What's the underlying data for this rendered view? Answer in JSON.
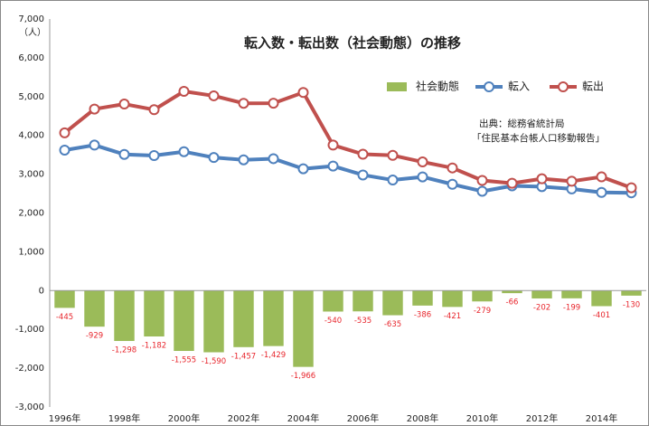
{
  "chart_data": {
    "type": "bar",
    "title": "転入数・転出数（社会動態）の推移",
    "y_unit": "（人）",
    "source": [
      "出典：総務省統計局",
      "「住民基本台帳人口移動報告」"
    ],
    "categories": [
      "1996年",
      null,
      "1998年",
      null,
      "2000年",
      null,
      "2002年",
      null,
      "2004年",
      null,
      "2006年",
      null,
      "2008年",
      null,
      "2010年",
      null,
      "2012年",
      null,
      "2014年",
      null
    ],
    "series": [
      {
        "name": "社会動態",
        "type": "bar",
        "color": "#9bbb59",
        "values": [
          -445,
          -929,
          -1298,
          -1182,
          -1555,
          -1590,
          -1457,
          -1429,
          -1966,
          -540,
          -535,
          -635,
          -386,
          -421,
          -279,
          -66,
          -202,
          -199,
          -401,
          -130
        ],
        "value_labels": [
          "-445",
          "-929",
          "-1,298",
          "-1,182",
          "-1,555",
          "-1,590",
          "-1,457",
          "-1,429",
          "-1,966",
          "-540",
          "-535",
          "-635",
          "-386",
          "-421",
          "-279",
          "-66",
          "-202",
          "-199",
          "-401",
          "-130"
        ]
      },
      {
        "name": "転入",
        "type": "line",
        "color": "#4f81bd",
        "values": [
          3620,
          3750,
          3510,
          3480,
          3580,
          3430,
          3370,
          3400,
          3140,
          3210,
          2980,
          2850,
          2930,
          2740,
          2560,
          2700,
          2680,
          2620,
          2530,
          2520
        ]
      },
      {
        "name": "転出",
        "type": "line",
        "color": "#c0504d",
        "values": [
          4065,
          4679,
          4808,
          4662,
          5135,
          5020,
          4827,
          4829,
          5106,
          3750,
          3515,
          3485,
          3316,
          3161,
          2839,
          2766,
          2882,
          2819,
          2931,
          2650
        ]
      }
    ],
    "ylim": [
      -3000,
      7000
    ],
    "yticks": [
      {
        "value": -3000,
        "label": "-3,000"
      },
      {
        "value": -2000,
        "label": "-2,000"
      },
      {
        "value": -1000,
        "label": "-1,000"
      },
      0,
      {
        "value": 1000,
        "label": "1,000"
      },
      {
        "value": 2000,
        "label": "2,000"
      },
      {
        "value": 3000,
        "label": "3,000"
      },
      {
        "value": 4000,
        "label": "4,000"
      },
      {
        "value": 5000,
        "label": "5,000"
      },
      {
        "value": 6000,
        "label": "6,000"
      },
      {
        "value": 7000,
        "label": "7,000"
      }
    ],
    "grid": false
  }
}
